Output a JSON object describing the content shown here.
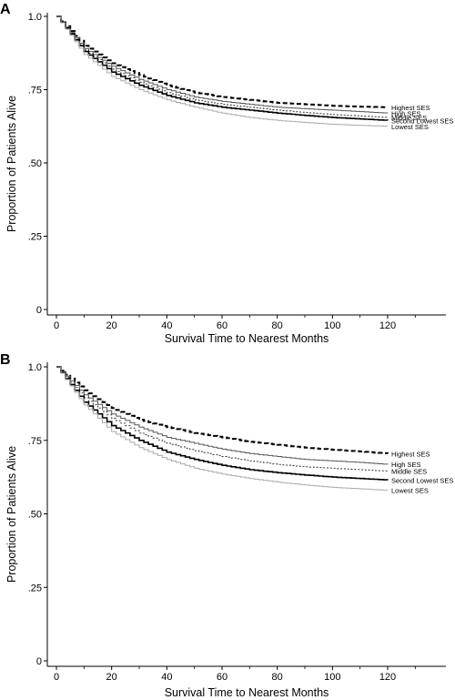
{
  "chart_data": [
    {
      "panel": "A",
      "type": "line",
      "xlabel": "Survival Time to Nearest Months",
      "ylabel": "Proportion of Patients Alive",
      "xlim": [
        0,
        140
      ],
      "ylim": [
        0,
        1.0
      ],
      "x_ticks": [
        "0",
        "20",
        "40",
        "60",
        "80",
        "100",
        "120"
      ],
      "y_ticks": [
        "0",
        ".25",
        ".50",
        ".75",
        "1.0"
      ],
      "grid": false,
      "legend_placement": "right end of lines",
      "series": [
        {
          "name": "Highest SES",
          "style": "dashed-bold",
          "color": "#000000",
          "x": [
            0,
            10,
            20,
            30,
            40,
            50,
            60,
            70,
            80,
            90,
            100,
            110,
            120
          ],
          "y": [
            1.0,
            0.9,
            0.84,
            0.8,
            0.765,
            0.74,
            0.725,
            0.715,
            0.705,
            0.7,
            0.695,
            0.692,
            0.69
          ]
        },
        {
          "name": "High SES",
          "style": "solid-thin",
          "color": "#555555",
          "x": [
            0,
            10,
            20,
            30,
            40,
            50,
            60,
            70,
            80,
            90,
            100,
            110,
            120
          ],
          "y": [
            1.0,
            0.89,
            0.83,
            0.785,
            0.75,
            0.725,
            0.71,
            0.7,
            0.69,
            0.685,
            0.68,
            0.675,
            0.67
          ]
        },
        {
          "name": "Middle SES",
          "style": "dotted",
          "color": "#333333",
          "x": [
            0,
            10,
            20,
            30,
            40,
            50,
            60,
            70,
            80,
            90,
            100,
            110,
            120
          ],
          "y": [
            1.0,
            0.885,
            0.82,
            0.775,
            0.74,
            0.715,
            0.7,
            0.69,
            0.68,
            0.672,
            0.665,
            0.66,
            0.655
          ]
        },
        {
          "name": "Second Lowest SES",
          "style": "solid-bold",
          "color": "#000000",
          "x": [
            0,
            10,
            20,
            30,
            40,
            50,
            60,
            70,
            80,
            90,
            100,
            110,
            120
          ],
          "y": [
            1.0,
            0.88,
            0.81,
            0.765,
            0.73,
            0.705,
            0.69,
            0.68,
            0.67,
            0.662,
            0.655,
            0.65,
            0.645
          ]
        },
        {
          "name": "Lowest SES",
          "style": "solid-light",
          "color": "#aaaaaa",
          "x": [
            0,
            10,
            20,
            30,
            40,
            50,
            60,
            70,
            80,
            90,
            100,
            110,
            120
          ],
          "y": [
            1.0,
            0.87,
            0.795,
            0.75,
            0.715,
            0.69,
            0.67,
            0.655,
            0.645,
            0.638,
            0.632,
            0.628,
            0.625
          ]
        }
      ]
    },
    {
      "panel": "B",
      "type": "line",
      "xlabel": "Survival Time to Nearest Months",
      "ylabel": "Proportion of Patients Alive",
      "xlim": [
        0,
        140
      ],
      "ylim": [
        0,
        1.0
      ],
      "x_ticks": [
        "0",
        "20",
        "40",
        "60",
        "80",
        "100",
        "120"
      ],
      "y_ticks": [
        "0",
        ".25",
        ".50",
        ".75",
        "1.0"
      ],
      "grid": false,
      "legend_placement": "right end of lines",
      "series": [
        {
          "name": "Highest SES",
          "style": "dashed-bold",
          "color": "#000000",
          "x": [
            0,
            10,
            20,
            30,
            40,
            50,
            60,
            70,
            80,
            90,
            100,
            110,
            120
          ],
          "y": [
            1.0,
            0.92,
            0.86,
            0.82,
            0.795,
            0.775,
            0.76,
            0.745,
            0.735,
            0.725,
            0.718,
            0.712,
            0.705
          ]
        },
        {
          "name": "High SES",
          "style": "solid-thin",
          "color": "#555555",
          "x": [
            0,
            10,
            20,
            30,
            40,
            50,
            60,
            70,
            80,
            90,
            100,
            110,
            120
          ],
          "y": [
            1.0,
            0.905,
            0.84,
            0.795,
            0.76,
            0.74,
            0.72,
            0.705,
            0.695,
            0.685,
            0.68,
            0.675,
            0.668
          ]
        },
        {
          "name": "Middle SES",
          "style": "dotted",
          "color": "#333333",
          "x": [
            0,
            10,
            20,
            30,
            40,
            50,
            60,
            70,
            80,
            90,
            100,
            110,
            120
          ],
          "y": [
            1.0,
            0.895,
            0.825,
            0.775,
            0.74,
            0.715,
            0.695,
            0.68,
            0.668,
            0.66,
            0.655,
            0.65,
            0.645
          ]
        },
        {
          "name": "Second Lowest SES",
          "style": "solid-bold",
          "color": "#000000",
          "x": [
            0,
            10,
            20,
            30,
            40,
            50,
            60,
            70,
            80,
            90,
            100,
            110,
            120
          ],
          "y": [
            1.0,
            0.88,
            0.8,
            0.75,
            0.71,
            0.685,
            0.665,
            0.65,
            0.64,
            0.632,
            0.625,
            0.62,
            0.615
          ]
        },
        {
          "name": "Lowest SES",
          "style": "solid-light",
          "color": "#aaaaaa",
          "x": [
            0,
            10,
            20,
            30,
            40,
            50,
            60,
            70,
            80,
            90,
            100,
            110,
            120
          ],
          "y": [
            1.0,
            0.87,
            0.78,
            0.725,
            0.685,
            0.655,
            0.635,
            0.62,
            0.608,
            0.598,
            0.59,
            0.585,
            0.58
          ]
        }
      ]
    }
  ]
}
